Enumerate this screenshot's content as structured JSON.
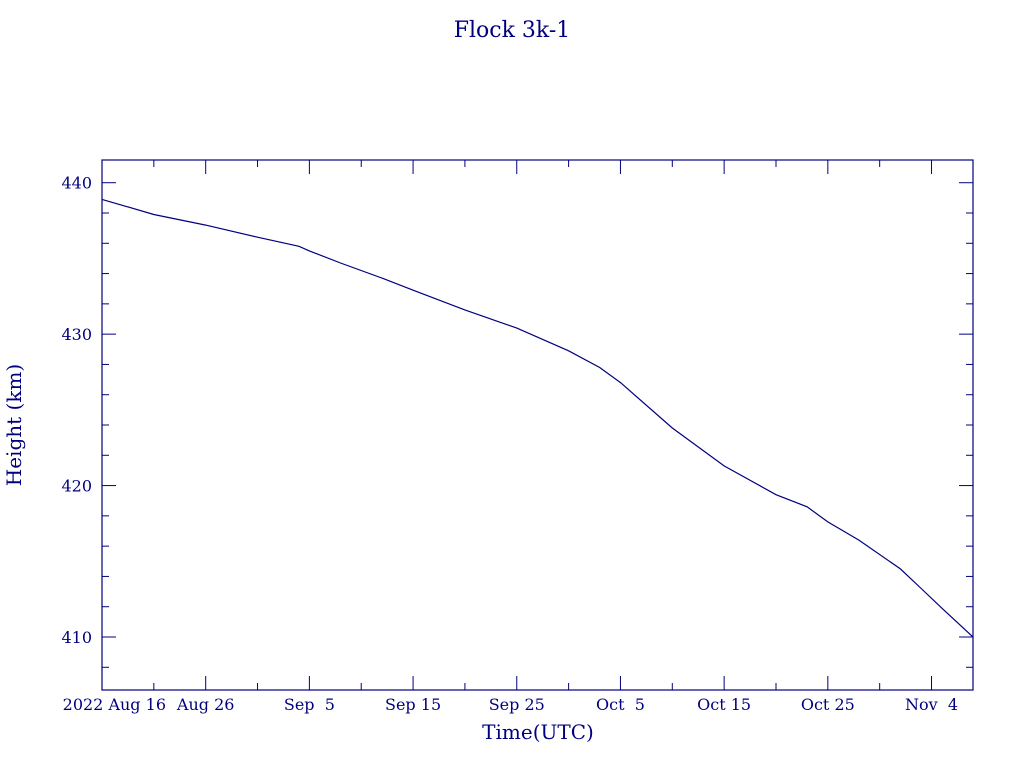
{
  "chart_data": {
    "type": "line",
    "title": "Flock 3k-1",
    "xlabel": "Time(UTC)",
    "ylabel": "Height (km)",
    "xlim": [
      "2022-08-16",
      "2022-11-08"
    ],
    "ylim": [
      406.5,
      441.5
    ],
    "grid": false,
    "legend": "none",
    "x_ticks": [
      {
        "date": "2022-08-16",
        "label": "2022 Aug 16"
      },
      {
        "date": "2022-08-26",
        "label": "Aug 26"
      },
      {
        "date": "2022-09-05",
        "label": "Sep  5"
      },
      {
        "date": "2022-09-15",
        "label": "Sep 15"
      },
      {
        "date": "2022-09-25",
        "label": "Sep 25"
      },
      {
        "date": "2022-10-05",
        "label": "Oct  5"
      },
      {
        "date": "2022-10-15",
        "label": "Oct 15"
      },
      {
        "date": "2022-10-25",
        "label": "Oct 25"
      },
      {
        "date": "2022-11-04",
        "label": "Nov  4"
      }
    ],
    "y_ticks": [
      410,
      420,
      430,
      440
    ],
    "series": [
      {
        "color": "#00007f",
        "x": [
          "2022-08-16",
          "2022-08-18",
          "2022-08-21",
          "2022-08-26",
          "2022-08-31",
          "2022-09-04",
          "2022-09-05",
          "2022-09-08",
          "2022-09-12",
          "2022-09-15",
          "2022-09-20",
          "2022-09-25",
          "2022-09-30",
          "2022-10-03",
          "2022-10-05",
          "2022-10-10",
          "2022-10-15",
          "2022-10-20",
          "2022-10-23",
          "2022-10-25",
          "2022-10-28",
          "2022-11-01",
          "2022-11-03",
          "2022-11-05",
          "2022-11-08"
        ],
        "y": [
          438.9,
          438.5,
          437.9,
          437.2,
          436.4,
          435.8,
          435.5,
          434.7,
          433.7,
          432.9,
          431.6,
          430.4,
          428.9,
          427.8,
          426.8,
          423.8,
          421.3,
          419.4,
          418.6,
          417.6,
          416.4,
          414.5,
          413.2,
          411.9,
          410.0
        ]
      }
    ]
  }
}
